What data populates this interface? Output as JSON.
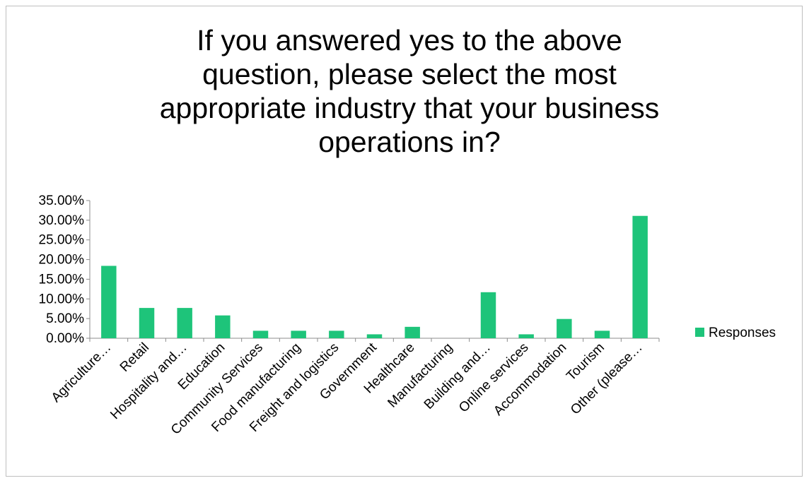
{
  "chart_data": {
    "type": "bar",
    "title": "If you answered yes to the above question, please select the most appropriate industry that your business operations in?",
    "title_lines": [
      "If you answered yes to the above",
      "question, please select the most",
      "appropriate industry that your business",
      "operations in?"
    ],
    "categories": [
      "Agriculture…",
      "Retail",
      "Hospitality and…",
      "Education",
      "Community Services",
      "Food manufacturing",
      "Freight and logistics",
      "Government",
      "Healthcare",
      "Manufacturing",
      "Building and…",
      "Online services",
      "Accommodation",
      "Tourism",
      "Other (please…"
    ],
    "series": [
      {
        "name": "Responses",
        "values": [
          18.4,
          7.7,
          7.7,
          5.8,
          1.9,
          1.9,
          1.9,
          1.0,
          2.9,
          0.0,
          11.7,
          1.0,
          4.9,
          1.9,
          31.1
        ],
        "color": "#1ec47a"
      }
    ],
    "yticks": [
      "0.00%",
      "5.00%",
      "10.00%",
      "15.00%",
      "20.00%",
      "25.00%",
      "30.00%",
      "35.00%"
    ],
    "ylim": [
      0,
      35
    ],
    "grid": false,
    "legend_position": "right"
  }
}
